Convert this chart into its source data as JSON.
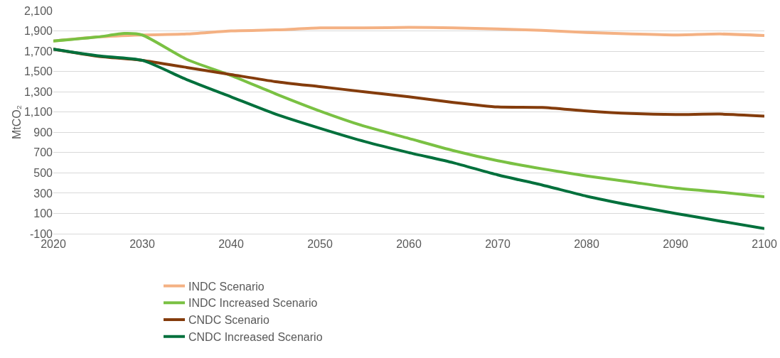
{
  "chart_data": {
    "type": "line",
    "ylabel": "MtCO₂",
    "x": [
      2020,
      2025,
      2030,
      2035,
      2040,
      2045,
      2050,
      2055,
      2060,
      2065,
      2070,
      2075,
      2080,
      2085,
      2090,
      2095,
      2100
    ],
    "series": [
      {
        "name": "INDC Scenario",
        "color": "#f4b183",
        "values": [
          1800,
          1840,
          1860,
          1870,
          1900,
          1910,
          1930,
          1930,
          1935,
          1930,
          1920,
          1905,
          1885,
          1870,
          1860,
          1870,
          1855
        ]
      },
      {
        "name": "INDC Increased Scenario",
        "color": "#7ac143",
        "x": [
          2020,
          2025,
          2028,
          2030,
          2035,
          2040,
          2045,
          2050,
          2055,
          2060,
          2065,
          2070,
          2075,
          2080,
          2085,
          2090,
          2095,
          2100
        ],
        "values": [
          1800,
          1840,
          1875,
          1860,
          1620,
          1460,
          1280,
          1110,
          960,
          840,
          720,
          620,
          540,
          470,
          410,
          350,
          310,
          265
        ]
      },
      {
        "name": "CNDC Scenario",
        "color": "#843c0c",
        "values": [
          1720,
          1650,
          1610,
          1540,
          1470,
          1400,
          1350,
          1300,
          1250,
          1195,
          1150,
          1145,
          1110,
          1085,
          1075,
          1080,
          1060
        ]
      },
      {
        "name": "CNDC Increased Scenario",
        "color": "#00703c",
        "values": [
          1720,
          1655,
          1610,
          1420,
          1250,
          1080,
          940,
          810,
          700,
          600,
          480,
          380,
          270,
          180,
          100,
          25,
          -50
        ]
      }
    ],
    "xlim": [
      2020,
      2100
    ],
    "xticks": [
      2020,
      2030,
      2040,
      2050,
      2060,
      2070,
      2080,
      2090,
      2100
    ],
    "ylim": [
      -100,
      2100
    ],
    "yticks": [
      -100,
      100,
      300,
      500,
      700,
      900,
      {
        "value": 1100,
        "label": "1,100"
      },
      {
        "value": 1300,
        "label": "1,300"
      },
      {
        "value": 1500,
        "label": "1,500"
      },
      {
        "value": 1700,
        "label": "1,700"
      },
      {
        "value": 1900,
        "label": "1,900"
      },
      {
        "value": 2100,
        "label": "2,100"
      }
    ],
    "grid": "y",
    "legend": "bottom",
    "marker": "none",
    "line_style": "solid"
  }
}
